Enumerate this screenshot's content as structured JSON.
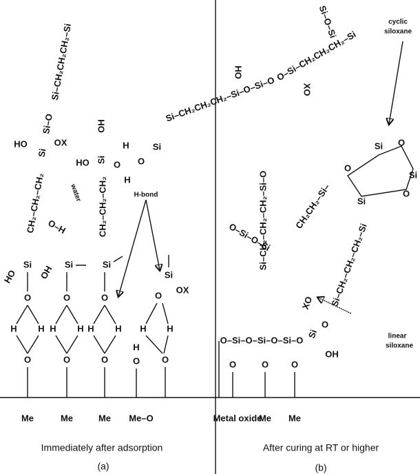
{
  "panel_a": {
    "surface_groups": [
      "Me",
      "Me",
      "Me",
      "Me–O"
    ],
    "atoms": [
      "O",
      "H",
      "H",
      "O",
      "O",
      "H",
      "H",
      "O",
      "O",
      "H",
      "H",
      "O",
      "Si",
      "HO",
      "OH",
      "Si",
      "Si",
      "CH₂–CH₂–CH₂",
      "HO",
      "Si",
      "OX",
      "Si–O",
      "Si–CH₂CH₂CH₂–Si",
      "O–H",
      "CH₂–CH₂–CH₂",
      "HO",
      "Si",
      "O",
      "OH",
      "H",
      "O",
      "Si",
      "H",
      "Si",
      "O",
      "OX",
      "H",
      "H",
      "O",
      "O",
      "H"
    ],
    "annotations": [
      "water",
      "H-bond"
    ],
    "caption": "Immediately after adsorption",
    "label": "(a)"
  },
  "panel_b": {
    "surface_label": "Metal oxide",
    "surface_groups": [
      "Me",
      "Me"
    ],
    "fragments": [
      "O–Si–O–Si–O–Si–O",
      "Si",
      "O",
      "XO",
      "OH",
      "O",
      "O",
      "O",
      "Si–CH₂–CH₂–CH₂–Si–O",
      "Si–CH₂CH₂CH₂–Si–O–Si–O",
      "HO",
      "O–Si–CH₂CH₂CH₂–Si",
      "XO",
      "Si–O–Si",
      "O–Si–O–Si",
      "CH₂CH₂–Si–",
      "Si–CH₂–CH₂–CH₂–Si",
      "Si",
      "O",
      "Si",
      "O",
      "Si",
      "O"
    ],
    "annotations": [
      "cyclic",
      "siloxane",
      "linear",
      "siloxane"
    ],
    "caption": "After curing at RT or higher",
    "label": "(b)"
  }
}
